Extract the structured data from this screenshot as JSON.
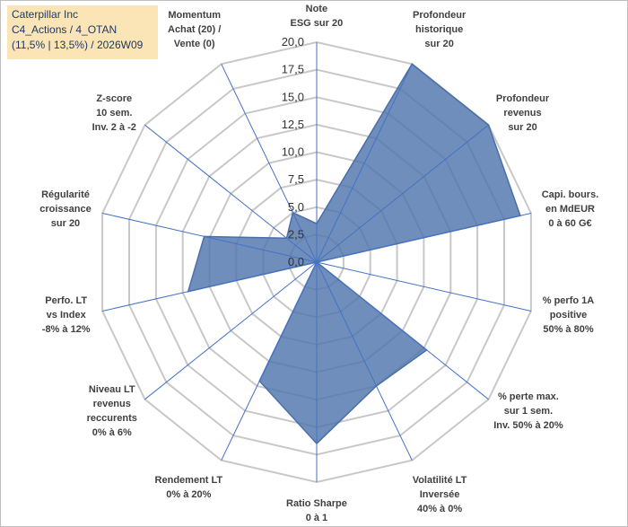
{
  "info_box": {
    "line1": "Caterpillar Inc",
    "line2": "C4_Actions / 4_OTAN",
    "line3": "(11,5% | 13,5%) / 2026W09"
  },
  "colors": {
    "fill": "#4f75ad",
    "grid": "#c8c8c8",
    "axis": "#4472c4",
    "info_bg": "#fbe5b6",
    "info_text": "#1f3864"
  },
  "chart_data": {
    "type": "radar",
    "title": "",
    "ylim": [
      0,
      20
    ],
    "tick_labels": [
      "0,0",
      "2,5",
      "5,0",
      "7,5",
      "10,0",
      "12,5",
      "15,0",
      "17,5",
      "20,0"
    ],
    "ticks": [
      0,
      2.5,
      5,
      7.5,
      10,
      12.5,
      15,
      17.5,
      20
    ],
    "categories": [
      "Note\nESG sur 20",
      "Profondeur\nhistorique\nsur 20",
      "Profondeur\nrevenus\nsur 20",
      "Capi. bours.\nen MdEUR\n0 à 60 G€",
      "% perfo 1A\npositive\n50% à 80%",
      "% perte max.\nsur 1 sem.\nInv. 50% à 20%",
      "Volatilité LT\nInversée\n40% à 0%",
      "Ratio Sharpe\n0 à 1",
      "Rendement LT\n0% à 20%",
      "Niveau LT\nrevenus\nreccurents\n0% à 6%",
      "Perfo. LT\nvs Index\n-8% à 12%",
      "Régularité\ncroissance\nsur 20",
      "Z-score\n10 sem.\nInv. 2 à -2",
      "Momentum\nAchat (20) /\nVente (0)"
    ],
    "series": [
      {
        "name": "Caterpillar Inc",
        "values": [
          3.5,
          20,
          20,
          19,
          0,
          12.8,
          12.5,
          16.5,
          12.0,
          0,
          12.0,
          10.5,
          3.5,
          5.0
        ]
      }
    ]
  }
}
